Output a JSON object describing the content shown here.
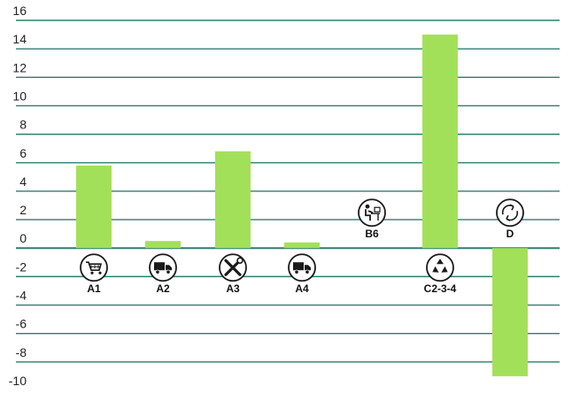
{
  "chart_data": {
    "type": "bar",
    "categories": [
      "A1",
      "A2",
      "A3",
      "A4",
      "B6",
      "C2-3-4",
      "D"
    ],
    "values": [
      5.8,
      0.5,
      6.8,
      0.4,
      0,
      15.0,
      -9.0
    ],
    "category_icons": [
      "cart-icon",
      "truck-icon",
      "tools-icon",
      "truck-icon",
      "worker-desk-icon",
      "recycle-icon",
      "cycle-icon"
    ],
    "ylim": [
      -10,
      16
    ],
    "yticks": [
      16,
      14,
      12,
      10,
      8,
      6,
      4,
      2,
      0,
      -2,
      -4,
      -6,
      -8,
      -10
    ],
    "grid": true,
    "title": "",
    "xlabel": "",
    "ylabel": "",
    "colors": {
      "bar": "#a3e05a",
      "grid": "#2e7d6f",
      "axis": "#2e7d6f",
      "icon": "#1a1a1a"
    }
  }
}
